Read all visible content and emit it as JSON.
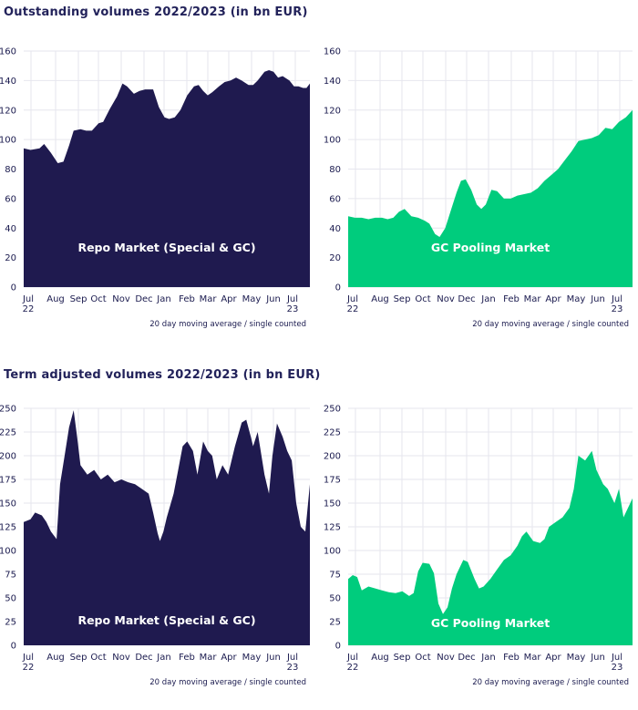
{
  "section_titles": [
    "Outstanding volumes 2022/2023 (in bn EUR)",
    "Term adjusted volumes 2022/2023 (in bn EUR)"
  ],
  "colors": {
    "repo": "#1f1a4f",
    "gcp": "#00cc7d",
    "grid": "#e6e6ee",
    "text": "#1a1a4e"
  },
  "months": [
    "Jul\n22",
    "Aug",
    "Sep",
    "Oct",
    "Nov",
    "Dec",
    "Jan",
    "Feb",
    "Mar",
    "Apr",
    "May",
    "Jun",
    "Jul\n23"
  ],
  "chart_data": [
    {
      "type": "area",
      "section": "Outstanding volumes 2022/2023 (in bn EUR)",
      "label": "Repo Market (Special & GC)",
      "color": "#1f1a4f",
      "note": "20 day moving average / single counted",
      "yticks": [
        0,
        20,
        40,
        60,
        80,
        100,
        120,
        140,
        160
      ],
      "ylim": [
        0,
        160
      ],
      "xlim": [
        0,
        12.6
      ],
      "x": [
        0,
        0.3,
        0.7,
        0.9,
        1.2,
        1.5,
        1.75,
        2.0,
        2.2,
        2.5,
        2.75,
        3.0,
        3.3,
        3.5,
        3.8,
        4.1,
        4.35,
        4.55,
        4.85,
        5.1,
        5.35,
        5.7,
        5.95,
        6.2,
        6.4,
        6.65,
        6.9,
        7.2,
        7.5,
        7.7,
        7.9,
        8.1,
        8.3,
        8.6,
        8.85,
        9.1,
        9.35,
        9.6,
        9.9,
        10.1,
        10.3,
        10.6,
        10.8,
        11.0,
        11.2,
        11.4,
        11.7,
        11.9,
        12.1,
        12.3,
        12.45,
        12.6
      ],
      "values": [
        94,
        93,
        94,
        97,
        91,
        84,
        85,
        96,
        106,
        107,
        106,
        106,
        111,
        112,
        121,
        129,
        138,
        136,
        131,
        133,
        134,
        134,
        122,
        115,
        114,
        115,
        120,
        130,
        136,
        137,
        133,
        130,
        132,
        136,
        139,
        140,
        142,
        140,
        137,
        137,
        140,
        146,
        147,
        146,
        142,
        143,
        140,
        136,
        136,
        135,
        135,
        138
      ]
    },
    {
      "type": "area",
      "section": "Outstanding volumes 2022/2023 (in bn EUR)",
      "label": "GC Pooling Market",
      "color": "#00cc7d",
      "note": "20 day moving average / single counted",
      "yticks": [
        0,
        20,
        40,
        60,
        80,
        100,
        120,
        140,
        160
      ],
      "ylim": [
        0,
        160
      ],
      "xlim": [
        0,
        12.6
      ],
      "x": [
        0,
        0.3,
        0.6,
        0.9,
        1.2,
        1.5,
        1.75,
        2.0,
        2.25,
        2.5,
        2.8,
        3.1,
        3.4,
        3.6,
        3.85,
        4.05,
        4.3,
        4.55,
        4.8,
        5.0,
        5.2,
        5.45,
        5.7,
        5.9,
        6.1,
        6.35,
        6.6,
        6.9,
        7.2,
        7.5,
        7.8,
        8.1,
        8.4,
        8.7,
        9.0,
        9.3,
        9.6,
        9.9,
        10.2,
        10.5,
        10.8,
        11.1,
        11.4,
        11.7,
        12.0,
        12.3,
        12.6
      ],
      "values": [
        48,
        47,
        47,
        46,
        47,
        47,
        46,
        47,
        51,
        53,
        48,
        47,
        45,
        43,
        36,
        34,
        40,
        52,
        64,
        72,
        73,
        66,
        56,
        53,
        56,
        66,
        65,
        60,
        60,
        62,
        63,
        64,
        67,
        72,
        76,
        80,
        86,
        92,
        99,
        100,
        101,
        103,
        108,
        107,
        112,
        115,
        120
      ]
    },
    {
      "type": "area",
      "section": "Term adjusted volumes 2022/2023 (in bn EUR)",
      "label": "Repo Market (Special & GC)",
      "color": "#1f1a4f",
      "note": "20 day moving average / single counted",
      "yticks": [
        0,
        25,
        50,
        75,
        100,
        125,
        150,
        175,
        200,
        225,
        250
      ],
      "ylim": [
        0,
        250
      ],
      "xlim": [
        0,
        12.6
      ],
      "x": [
        0,
        0.3,
        0.5,
        0.8,
        1.0,
        1.2,
        1.45,
        1.6,
        1.8,
        2.0,
        2.2,
        2.35,
        2.5,
        2.8,
        3.1,
        3.4,
        3.7,
        4.0,
        4.3,
        4.6,
        4.9,
        5.2,
        5.5,
        5.7,
        5.9,
        6.0,
        6.15,
        6.3,
        6.6,
        6.8,
        7.0,
        7.2,
        7.45,
        7.65,
        7.9,
        8.1,
        8.3,
        8.5,
        8.75,
        9.0,
        9.3,
        9.6,
        9.8,
        10.0,
        10.1,
        10.3,
        10.6,
        10.8,
        10.95,
        11.15,
        11.4,
        11.6,
        11.8,
        12.0,
        12.2,
        12.4,
        12.6
      ],
      "values": [
        130,
        133,
        140,
        137,
        130,
        120,
        112,
        170,
        200,
        230,
        248,
        220,
        190,
        180,
        185,
        175,
        180,
        172,
        175,
        172,
        170,
        165,
        160,
        140,
        118,
        110,
        120,
        135,
        160,
        185,
        210,
        215,
        205,
        180,
        215,
        205,
        200,
        175,
        190,
        180,
        210,
        235,
        238,
        220,
        210,
        225,
        180,
        160,
        200,
        234,
        220,
        205,
        195,
        150,
        125,
        120,
        170
      ]
    },
    {
      "type": "area",
      "section": "Term adjusted volumes 2022/2023 (in bn EUR)",
      "label": "GC Pooling Market",
      "color": "#00cc7d",
      "note": "20 day moving average / single counted",
      "yticks": [
        0,
        25,
        50,
        75,
        100,
        125,
        150,
        175,
        200,
        225,
        250
      ],
      "ylim": [
        0,
        250
      ],
      "xlim": [
        0,
        12.6
      ],
      "x": [
        0,
        0.2,
        0.4,
        0.6,
        0.9,
        1.2,
        1.5,
        1.8,
        2.1,
        2.4,
        2.7,
        2.9,
        3.1,
        3.3,
        3.6,
        3.8,
        4.0,
        4.2,
        4.4,
        4.6,
        4.8,
        5.1,
        5.3,
        5.6,
        5.8,
        6.0,
        6.3,
        6.6,
        6.9,
        7.2,
        7.5,
        7.7,
        7.9,
        8.2,
        8.5,
        8.7,
        8.9,
        9.2,
        9.5,
        9.8,
        10.0,
        10.2,
        10.5,
        10.8,
        11.0,
        11.3,
        11.5,
        11.8,
        12.0,
        12.2,
        12.4,
        12.6
      ],
      "values": [
        70,
        74,
        72,
        58,
        62,
        60,
        58,
        56,
        55,
        57,
        52,
        55,
        78,
        87,
        86,
        76,
        44,
        33,
        40,
        60,
        75,
        90,
        88,
        70,
        60,
        62,
        70,
        80,
        90,
        95,
        105,
        115,
        120,
        110,
        108,
        112,
        125,
        130,
        135,
        145,
        165,
        200,
        195,
        205,
        185,
        170,
        165,
        150,
        165,
        135,
        145,
        155
      ]
    }
  ]
}
